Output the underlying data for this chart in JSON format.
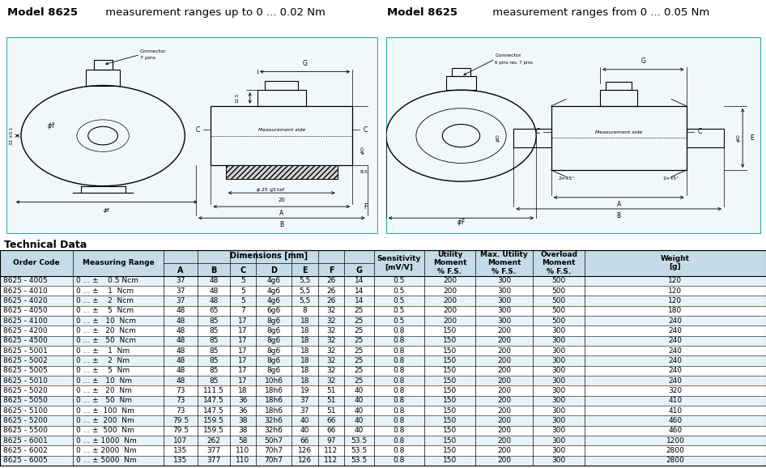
{
  "title_left_bold": "Model 8625",
  "title_left_rest": "     measurement ranges up to 0 ... 0.02 Nm",
  "title_right_bold": "Model 8625",
  "title_right_rest": "     measurement ranges from 0 ... 0.05 Nm",
  "section_title": "Technical Data",
  "rows": [
    [
      "8625 - 4005",
      "0 ... ±    0.5 Ncm",
      "37",
      "48",
      "5",
      "4g6",
      "5,5",
      "26",
      "14",
      "0.5",
      "200",
      "300",
      "500",
      "120"
    ],
    [
      "8625 - 4010",
      "0 ... ±    1  Ncm",
      "37",
      "48",
      "5",
      "4g6",
      "5,5",
      "26",
      "14",
      "0.5",
      "200",
      "300",
      "500",
      "120"
    ],
    [
      "8625 - 4020",
      "0 ... ±    2  Ncm",
      "37",
      "48",
      "5",
      "4g6",
      "5,5",
      "26",
      "14",
      "0.5",
      "200",
      "300",
      "500",
      "120"
    ],
    [
      "8625 - 4050",
      "0 ... ±    5  Ncm",
      "48",
      "65",
      "7",
      "6g6",
      "8",
      "32",
      "25",
      "0.5",
      "200",
      "300",
      "500",
      "180"
    ],
    [
      "8625 - 4100",
      "0 ... ±   10  Ncm",
      "48",
      "85",
      "17",
      "8g6",
      "18",
      "32",
      "25",
      "0.5",
      "200",
      "300",
      "500",
      "240"
    ],
    [
      "8625 - 4200",
      "0 ... ±   20  Ncm",
      "48",
      "85",
      "17",
      "8g6",
      "18",
      "32",
      "25",
      "0.8",
      "150",
      "200",
      "300",
      "240"
    ],
    [
      "8625 - 4500",
      "0 ... ±   50  Ncm",
      "48",
      "85",
      "17",
      "8g6",
      "18",
      "32",
      "25",
      "0.8",
      "150",
      "200",
      "300",
      "240"
    ],
    [
      "8625 - 5001",
      "0 ... ±    1  Nm",
      "48",
      "85",
      "17",
      "8g6",
      "18",
      "32",
      "25",
      "0.8",
      "150",
      "200",
      "300",
      "240"
    ],
    [
      "8625 - 5002",
      "0 ... ±    2  Nm",
      "48",
      "85",
      "17",
      "8g6",
      "18",
      "32",
      "25",
      "0.8",
      "150",
      "200",
      "300",
      "240"
    ],
    [
      "8625 - 5005",
      "0 ... ±    5  Nm",
      "48",
      "85",
      "17",
      "8g6",
      "18",
      "32",
      "25",
      "0.8",
      "150",
      "200",
      "300",
      "240"
    ],
    [
      "8625 - 5010",
      "0 ... ±   10  Nm",
      "48",
      "85",
      "17",
      "10h6",
      "18",
      "32",
      "25",
      "0.8",
      "150",
      "200",
      "300",
      "240"
    ],
    [
      "8625 - 5020",
      "0 ... ±   20  Nm",
      "73",
      "111.5",
      "18",
      "18h6",
      "19",
      "51",
      "40",
      "0.8",
      "150",
      "200",
      "300",
      "320"
    ],
    [
      "8625 - 5050",
      "0 ... ±   50  Nm",
      "73",
      "147.5",
      "36",
      "18h6",
      "37",
      "51",
      "40",
      "0.8",
      "150",
      "200",
      "300",
      "410"
    ],
    [
      "8625 - 5100",
      "0 ... ±  100  Nm",
      "73",
      "147.5",
      "36",
      "18h6",
      "37",
      "51",
      "40",
      "0.8",
      "150",
      "200",
      "300",
      "410"
    ],
    [
      "8625 - 5200",
      "0 ... ±  200  Nm",
      "79.5",
      "159.5",
      "38",
      "32h6",
      "40",
      "66",
      "40",
      "0.8",
      "150",
      "200",
      "300",
      "460"
    ],
    [
      "8625 - 5500",
      "0 ... ±  500  Nm",
      "79.5",
      "159.5",
      "38",
      "32h6",
      "40",
      "66",
      "40",
      "0.8",
      "150",
      "200",
      "300",
      "460"
    ],
    [
      "8625 - 6001",
      "0 ... ± 1000  Nm",
      "107",
      "262",
      "58",
      "50h7",
      "66",
      "97",
      "53.5",
      "0.8",
      "150",
      "200",
      "300",
      "1200"
    ],
    [
      "8625 - 6002",
      "0 ... ± 2000  Nm",
      "135",
      "377",
      "110",
      "70h7",
      "126",
      "112",
      "53.5",
      "0.8",
      "150",
      "200",
      "300",
      "2800"
    ],
    [
      "8625 - 6005",
      "0 ... ± 5000  Nm",
      "135",
      "377",
      "110",
      "70h7",
      "126",
      "112",
      "53.5",
      "0.8",
      "150",
      "200",
      "300",
      "2800"
    ]
  ],
  "header_bg": "#c5dce8",
  "row_bg_even": "#e8f3f8",
  "row_bg_odd": "#ffffff",
  "diagram_border": "#2aabab",
  "diagram_bg": "#f0f8fa",
  "bg_color": "#ffffff"
}
